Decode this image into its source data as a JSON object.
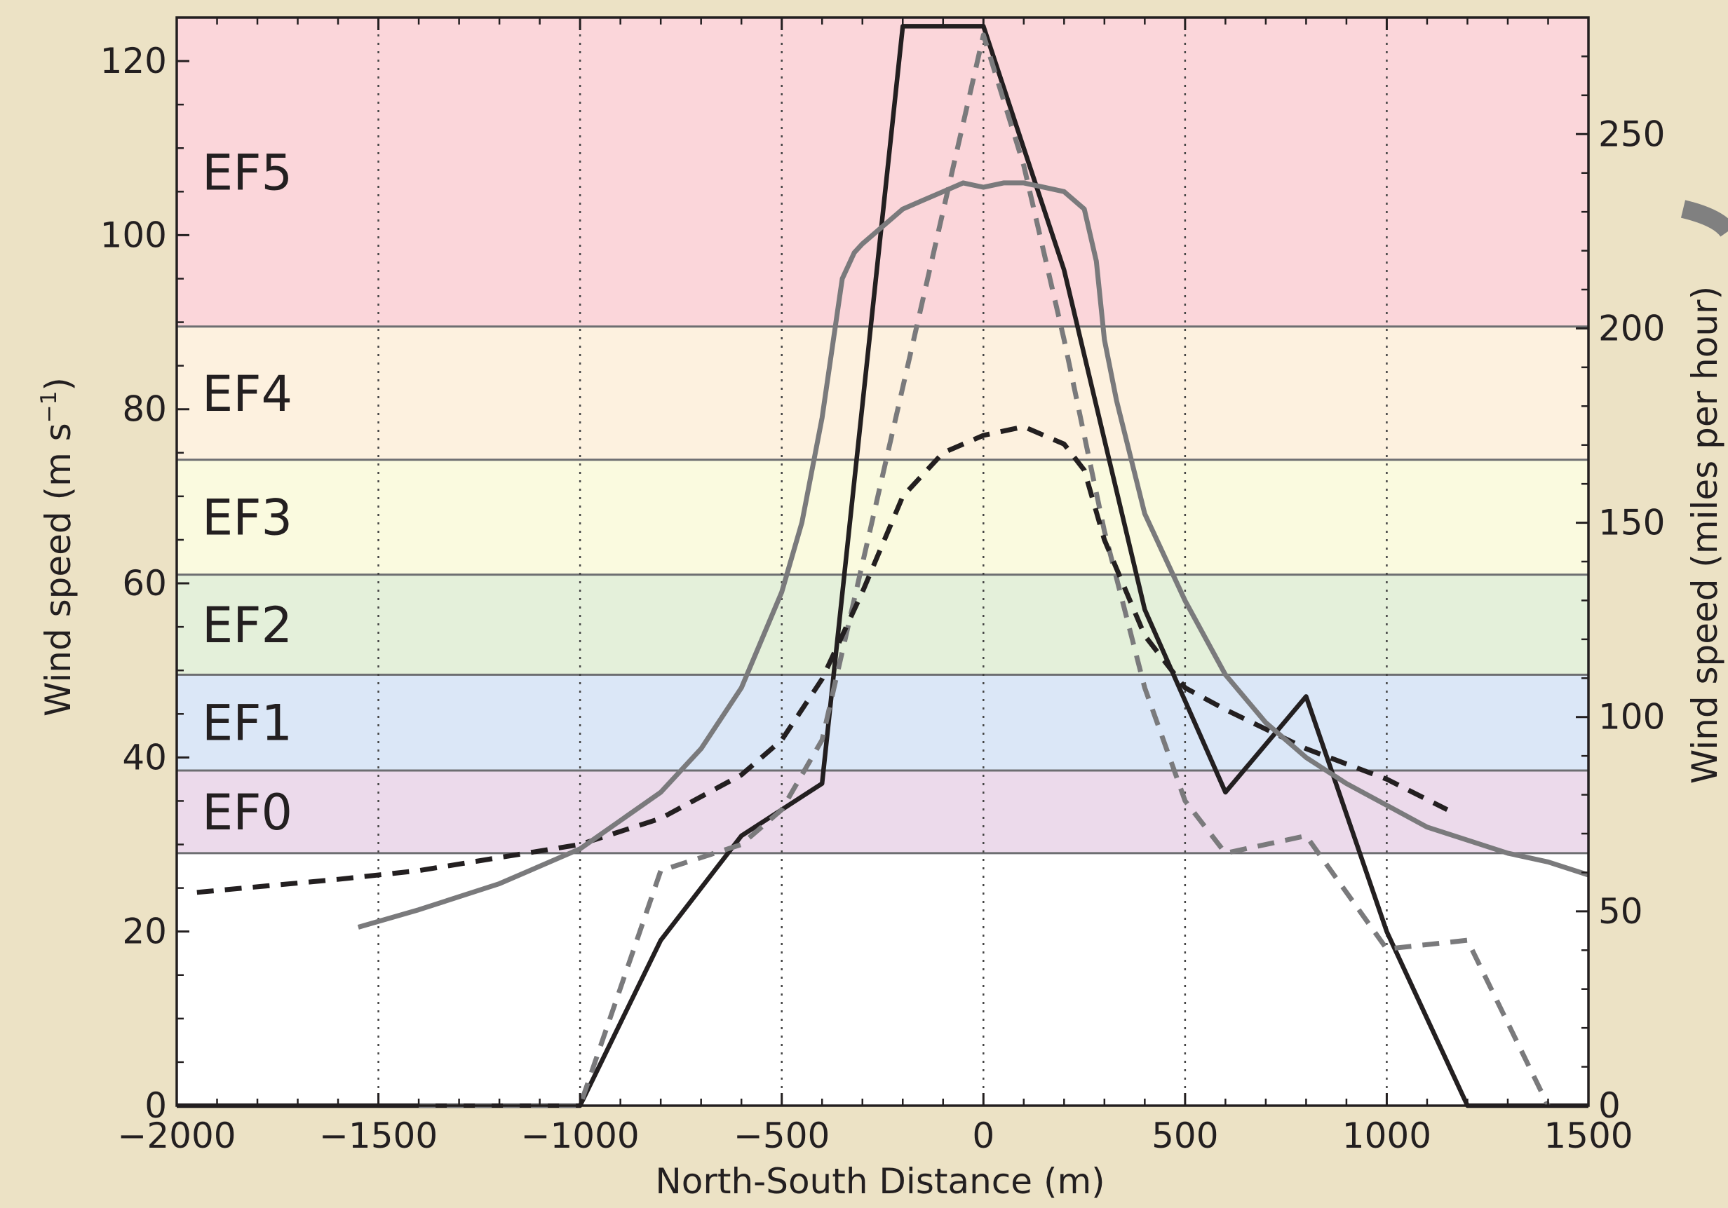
{
  "colors": {
    "background": "#ece2c5",
    "plot_background": "#ffffff",
    "band_EF0": "#ecdaeb",
    "band_EF1": "#dbe7f7",
    "band_EF2": "#e4f0da",
    "band_EF3": "#fafadf",
    "band_EF4": "#fdf1df",
    "band_EF5": "#fbd6da",
    "band_line": "#6d6e71",
    "black_line": "#231f20",
    "gray_line": "#7a7a7c",
    "axis": "#231f20"
  },
  "chart_data": {
    "type": "line",
    "xlabel": "North-South Distance (m)",
    "ylabel": "Wind speed (m s",
    "ylabel_superscript": "−1",
    "ylabel_close": ")",
    "y2label": "Wind speed (miles per hour)",
    "xlim": [
      -2000,
      1500
    ],
    "ylim": [
      0,
      125
    ],
    "y2lim": [
      0,
      280
    ],
    "x_ticks": [
      -2000,
      -1500,
      -1000,
      -500,
      0,
      500,
      1000,
      1500
    ],
    "x_tick_labels": [
      "−2000",
      "−1500",
      "−1000",
      "−500",
      "0",
      "500",
      "1000",
      "1500"
    ],
    "y_ticks": [
      0,
      20,
      40,
      60,
      80,
      100,
      120
    ],
    "y_tick_labels": [
      "0",
      "20",
      "40",
      "60",
      "80",
      "100",
      "120"
    ],
    "y2_ticks": [
      0,
      50,
      100,
      150,
      200,
      250
    ],
    "y2_tick_labels": [
      "0",
      "50",
      "100",
      "150",
      "200",
      "250"
    ],
    "vertical_grid": "dotted at x ticks",
    "bands": [
      {
        "label": "EF0",
        "min": 29,
        "max": 38.5,
        "color_key": "band_EF0"
      },
      {
        "label": "EF1",
        "min": 38.5,
        "max": 49.5,
        "color_key": "band_EF1"
      },
      {
        "label": "EF2",
        "min": 49.5,
        "max": 61,
        "color_key": "band_EF2"
      },
      {
        "label": "EF3",
        "min": 61,
        "max": 74.2,
        "color_key": "band_EF3"
      },
      {
        "label": "EF4",
        "min": 74.2,
        "max": 89.5,
        "color_key": "band_EF4"
      },
      {
        "label": "EF5",
        "min": 89.5,
        "max": 125,
        "color_key": "band_EF5"
      }
    ],
    "series": [
      {
        "style": "solid-black",
        "x": [
          -2000,
          -1000,
          -800,
          -600,
          -400,
          -200,
          0,
          200,
          400,
          600,
          800,
          1000,
          1200,
          1500
        ],
        "y": [
          0,
          0,
          19,
          31,
          37,
          124,
          124,
          96,
          57,
          36,
          47,
          20,
          0,
          0
        ]
      },
      {
        "style": "dashed-gray",
        "x": [
          -1400,
          -1000,
          -800,
          -600,
          -500,
          -400,
          0,
          100,
          200,
          300,
          400,
          500,
          600,
          800,
          1000,
          1200,
          1400
        ],
        "y": [
          0,
          0,
          27,
          30,
          34,
          42,
          123,
          108,
          88,
          66,
          48,
          35,
          29,
          31,
          18,
          19,
          0
        ]
      },
      {
        "style": "dashed-black",
        "x": [
          -1950,
          -1600,
          -1400,
          -1200,
          -1000,
          -800,
          -600,
          -500,
          -400,
          -300,
          -200,
          -100,
          0,
          100,
          200,
          250,
          300,
          400,
          500,
          600,
          800,
          1000,
          1150
        ],
        "y": [
          24.5,
          26,
          27,
          28.5,
          30,
          33,
          38,
          42,
          49,
          59,
          70,
          75,
          77,
          78,
          76,
          73,
          65,
          54,
          48,
          45.5,
          41,
          37.5,
          34
        ]
      },
      {
        "style": "solid-gray",
        "x": [
          -1550,
          -1400,
          -1200,
          -1000,
          -800,
          -700,
          -600,
          -500,
          -450,
          -400,
          -350,
          -320,
          -300,
          -250,
          -200,
          -150,
          -100,
          -50,
          0,
          50,
          100,
          150,
          200,
          250,
          280,
          300,
          330,
          400,
          500,
          600,
          700,
          800,
          900,
          1000,
          1100,
          1200,
          1300,
          1400,
          1500
        ],
        "y": [
          20.5,
          22.5,
          25.5,
          29.5,
          36,
          41,
          48,
          59,
          67,
          79,
          95,
          98,
          99,
          101,
          103,
          104,
          105,
          106,
          105.5,
          106,
          106,
          105.5,
          105,
          103,
          97,
          88,
          81,
          68,
          58,
          49.5,
          44,
          40,
          37,
          34.5,
          32,
          30.5,
          29,
          28,
          26.5
        ]
      }
    ]
  }
}
